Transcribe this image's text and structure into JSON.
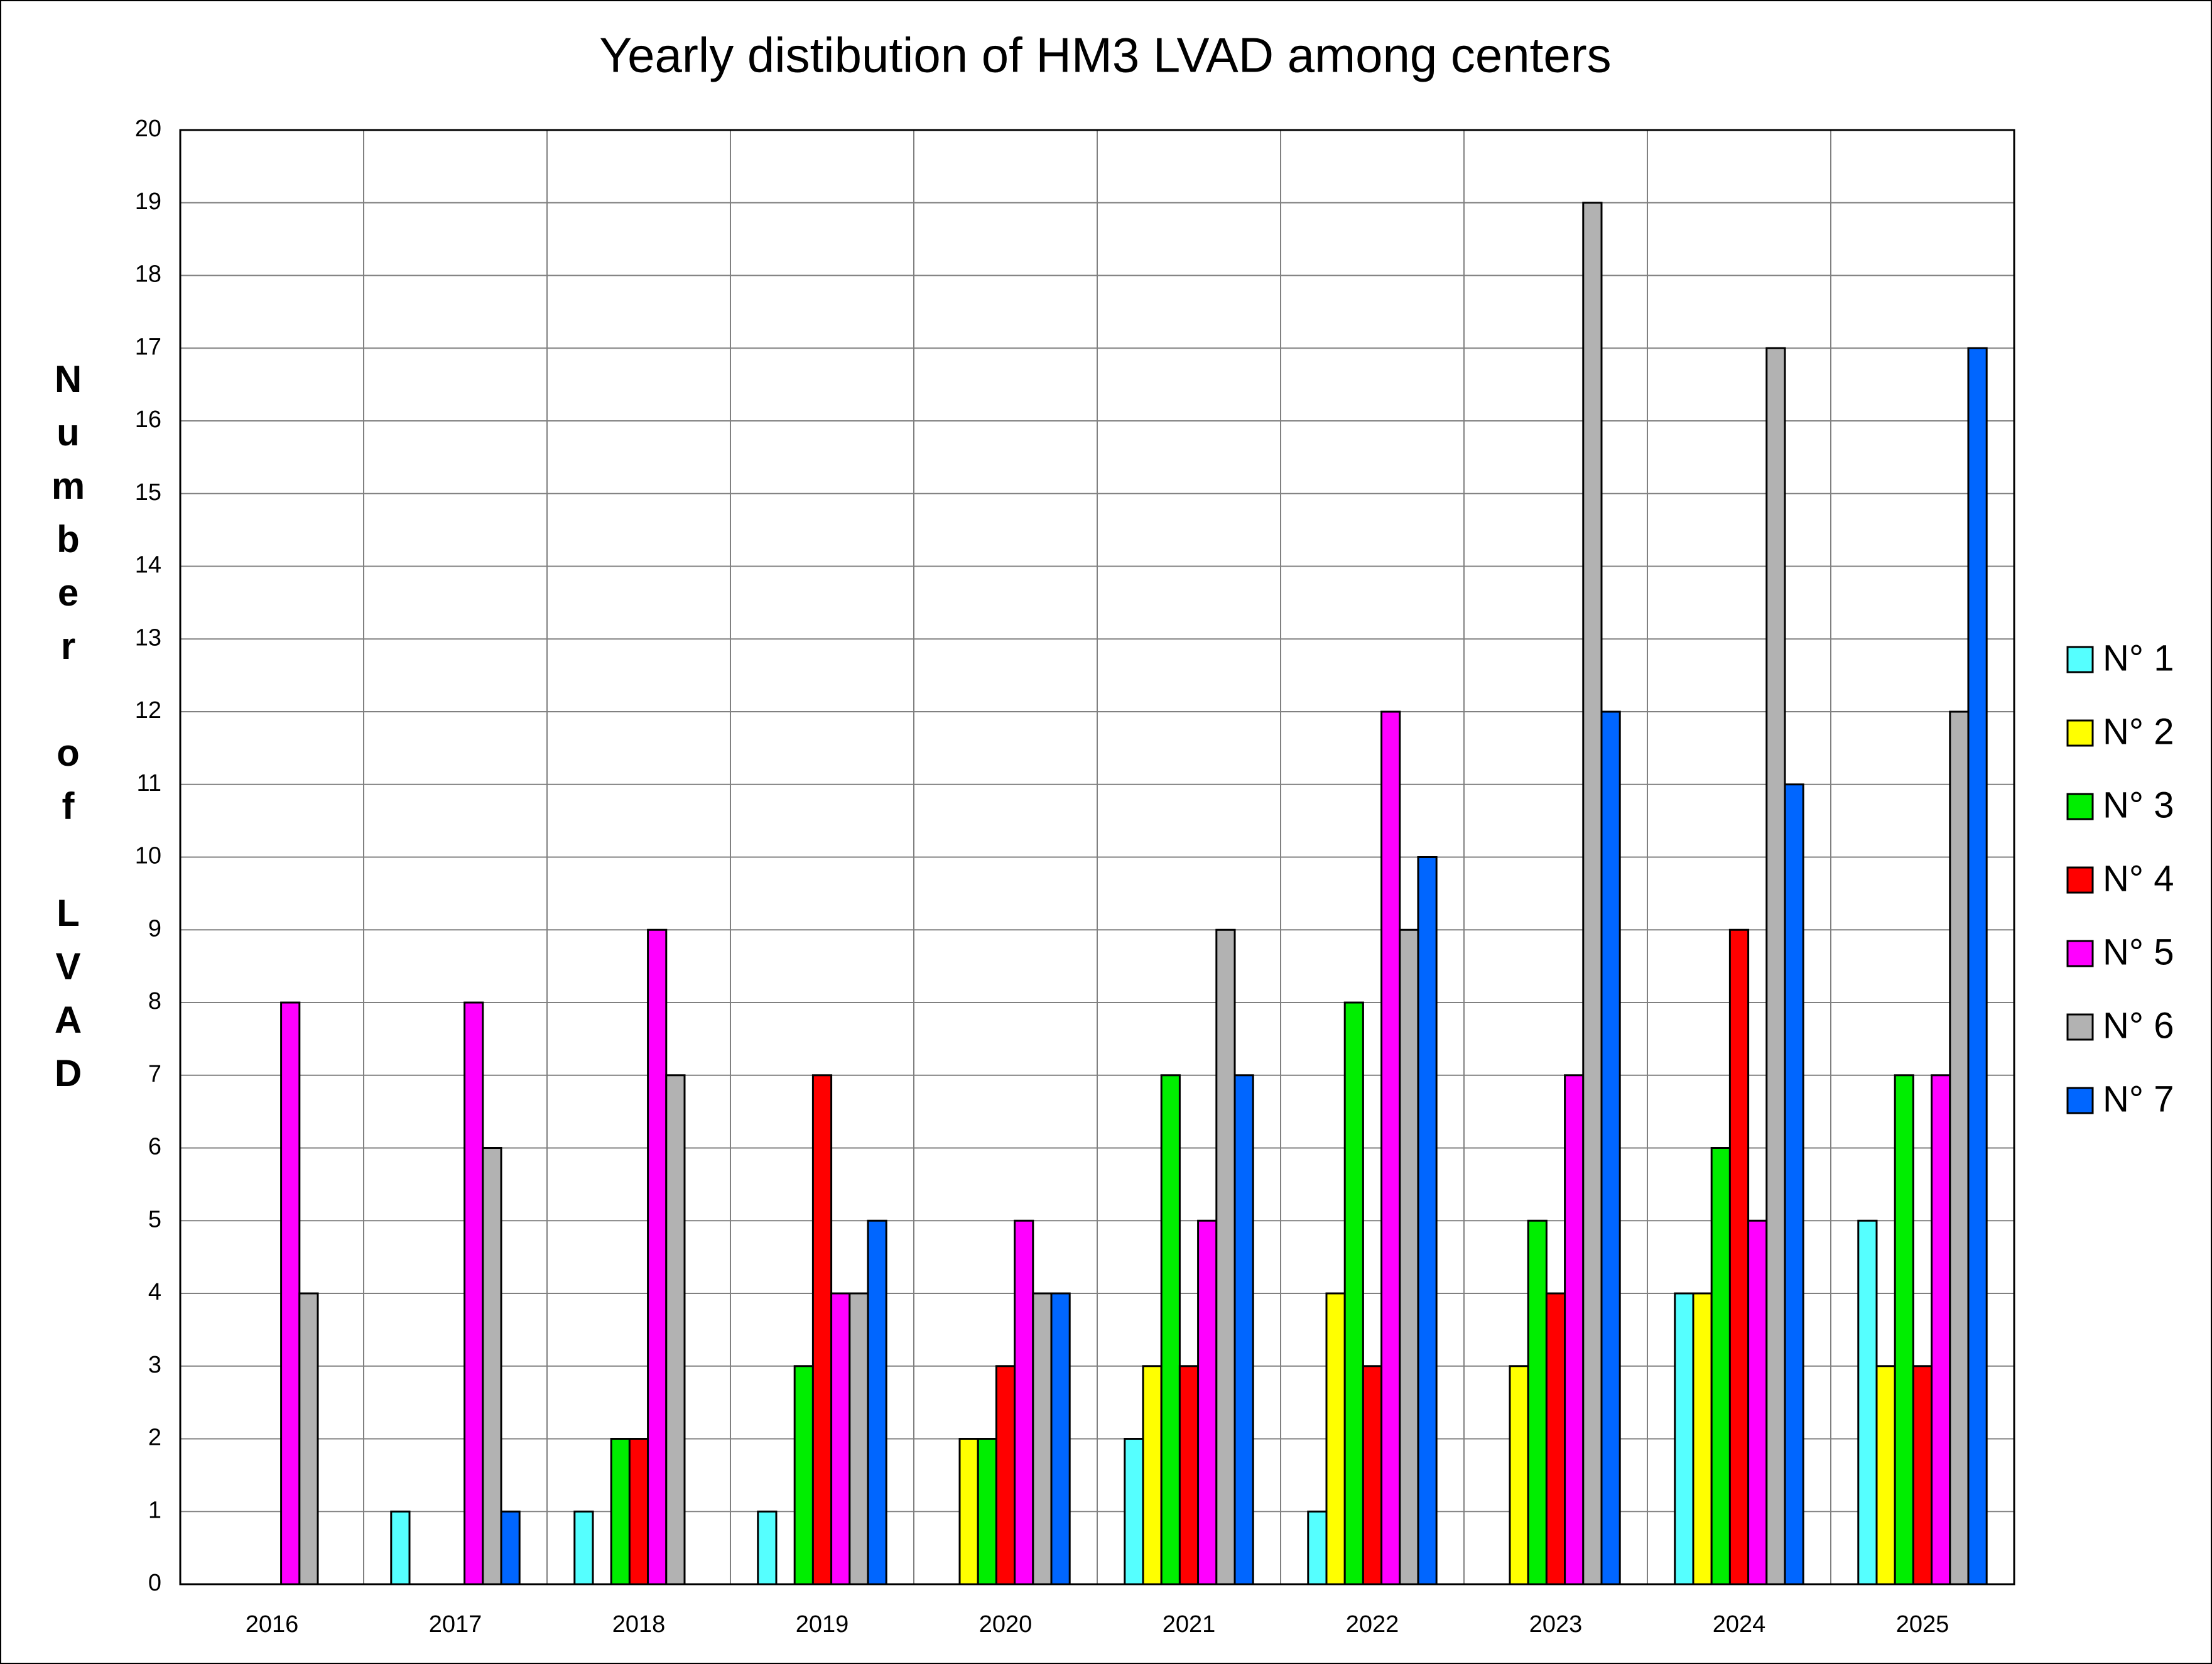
{
  "chart_data": {
    "type": "bar",
    "title": "Yearly distibution of HM3 LVAD among centers",
    "y_label": "Number of LVAD",
    "categories": [
      "2016",
      "2017",
      "2018",
      "2019",
      "2020",
      "2021",
      "2022",
      "2023",
      "2024",
      "2025"
    ],
    "series": [
      {
        "name": "N° 1",
        "color": "#55ffff",
        "values": [
          0,
          1,
          1,
          1,
          0,
          2,
          1,
          0,
          4,
          5
        ]
      },
      {
        "name": "N° 2",
        "color": "#ffff00",
        "values": [
          0,
          0,
          0,
          0,
          2,
          3,
          4,
          3,
          4,
          3
        ]
      },
      {
        "name": "N° 3",
        "color": "#00ee00",
        "values": [
          0,
          0,
          2,
          3,
          2,
          7,
          8,
          5,
          6,
          7
        ]
      },
      {
        "name": "N° 4",
        "color": "#ff0000",
        "values": [
          0,
          0,
          2,
          7,
          3,
          3,
          3,
          4,
          9,
          3
        ]
      },
      {
        "name": "N° 5",
        "color": "#ff00ff",
        "values": [
          8,
          8,
          9,
          4,
          5,
          5,
          12,
          7,
          5,
          7
        ]
      },
      {
        "name": "N° 6",
        "color": "#b2b2b2",
        "values": [
          4,
          6,
          7,
          4,
          4,
          9,
          9,
          19,
          17,
          12
        ]
      },
      {
        "name": "N° 7",
        "color": "#0066ff",
        "values": [
          0,
          1,
          0,
          5,
          4,
          7,
          10,
          12,
          11,
          17
        ]
      }
    ],
    "ylim": [
      0,
      20
    ],
    "yticks": [
      0,
      1,
      2,
      3,
      4,
      5,
      6,
      7,
      8,
      9,
      10,
      11,
      12,
      13,
      14,
      15,
      16,
      17,
      18,
      19,
      20
    ],
    "grid": true,
    "legend": "right"
  }
}
